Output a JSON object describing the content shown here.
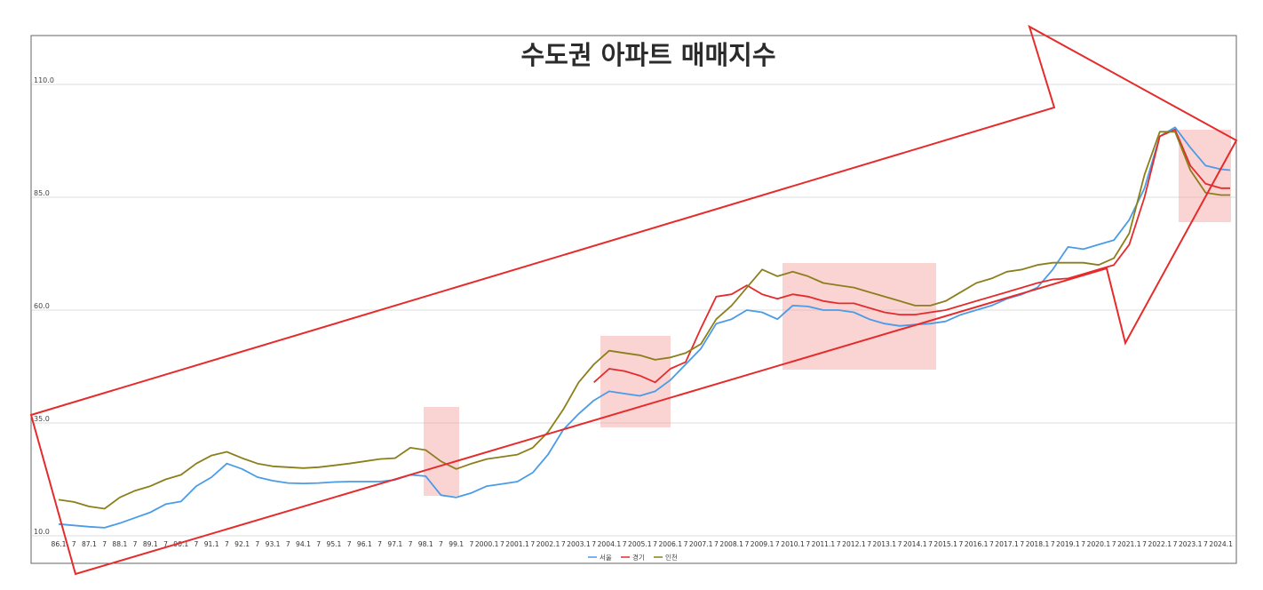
{
  "chart_data": {
    "type": "line",
    "title": "수도권 아파트 매매지수",
    "xlabel": "",
    "ylabel": "",
    "ylim": [
      10,
      110
    ],
    "grid": true,
    "legend": "bottom",
    "yticks": [
      "10.0",
      "35.0",
      "60.0",
      "85.0",
      "110.0"
    ],
    "ytick_values": [
      10,
      35,
      60,
      85,
      110
    ],
    "x_range": [
      1986.0,
      2024.3
    ],
    "x_tick_labels": [
      {
        "label": "86.1",
        "x": 1986.0
      },
      {
        "label": "7",
        "x": 1986.5
      },
      {
        "label": "87.1",
        "x": 1987.0
      },
      {
        "label": "7",
        "x": 1987.5
      },
      {
        "label": "88.1",
        "x": 1988.0
      },
      {
        "label": "7",
        "x": 1988.5
      },
      {
        "label": "89.1",
        "x": 1989.0
      },
      {
        "label": "7",
        "x": 1989.5
      },
      {
        "label": "90.1",
        "x": 1990.0
      },
      {
        "label": "7",
        "x": 1990.5
      },
      {
        "label": "91.1",
        "x": 1991.0
      },
      {
        "label": "7",
        "x": 1991.5
      },
      {
        "label": "92.1",
        "x": 1992.0
      },
      {
        "label": "7",
        "x": 1992.5
      },
      {
        "label": "93.1",
        "x": 1993.0
      },
      {
        "label": "7",
        "x": 1993.5
      },
      {
        "label": "94.1",
        "x": 1994.0
      },
      {
        "label": "7",
        "x": 1994.5
      },
      {
        "label": "95.1",
        "x": 1995.0
      },
      {
        "label": "7",
        "x": 1995.5
      },
      {
        "label": "96.1",
        "x": 1996.0
      },
      {
        "label": "7",
        "x": 1996.5
      },
      {
        "label": "97.1",
        "x": 1997.0
      },
      {
        "label": "7",
        "x": 1997.5
      },
      {
        "label": "98.1",
        "x": 1998.0
      },
      {
        "label": "7",
        "x": 1998.5
      },
      {
        "label": "99.1",
        "x": 1999.0
      },
      {
        "label": "7",
        "x": 1999.5
      },
      {
        "label": "2000.1",
        "x": 2000.0
      },
      {
        "label": "7",
        "x": 2000.5
      },
      {
        "label": "2001.1",
        "x": 2001.0
      },
      {
        "label": "7",
        "x": 2001.5
      },
      {
        "label": "2002.1",
        "x": 2002.0
      },
      {
        "label": "7",
        "x": 2002.5
      },
      {
        "label": "2003.1",
        "x": 2003.0
      },
      {
        "label": "7",
        "x": 2003.5
      },
      {
        "label": "2004.1",
        "x": 2004.0
      },
      {
        "label": "7",
        "x": 2004.5
      },
      {
        "label": "2005.1",
        "x": 2005.0
      },
      {
        "label": "7",
        "x": 2005.5
      },
      {
        "label": "2006.1",
        "x": 2006.0
      },
      {
        "label": "7",
        "x": 2006.5
      },
      {
        "label": "2007.1",
        "x": 2007.0
      },
      {
        "label": "7",
        "x": 2007.5
      },
      {
        "label": "2008.1",
        "x": 2008.0
      },
      {
        "label": "7",
        "x": 2008.5
      },
      {
        "label": "2009.1",
        "x": 2009.0
      },
      {
        "label": "7",
        "x": 2009.5
      },
      {
        "label": "2010.1",
        "x": 2010.0
      },
      {
        "label": "7",
        "x": 2010.5
      },
      {
        "label": "2011.1",
        "x": 2011.0
      },
      {
        "label": "7",
        "x": 2011.5
      },
      {
        "label": "2012.1",
        "x": 2012.0
      },
      {
        "label": "7",
        "x": 2012.5
      },
      {
        "label": "2013.1",
        "x": 2013.0
      },
      {
        "label": "7",
        "x": 2013.5
      },
      {
        "label": "2014.1",
        "x": 2014.0
      },
      {
        "label": "7",
        "x": 2014.5
      },
      {
        "label": "2015.1",
        "x": 2015.0
      },
      {
        "label": "7",
        "x": 2015.5
      },
      {
        "label": "2016.1",
        "x": 2016.0
      },
      {
        "label": "7",
        "x": 2016.5
      },
      {
        "label": "2017.1",
        "x": 2017.0
      },
      {
        "label": "7",
        "x": 2017.5
      },
      {
        "label": "2018.1",
        "x": 2018.0
      },
      {
        "label": "7",
        "x": 2018.5
      },
      {
        "label": "2019.1",
        "x": 2019.0
      },
      {
        "label": "7",
        "x": 2019.5
      },
      {
        "label": "2020.1",
        "x": 2020.0
      },
      {
        "label": "7",
        "x": 2020.5
      },
      {
        "label": "2021.1",
        "x": 2021.0
      },
      {
        "label": "7",
        "x": 2021.5
      },
      {
        "label": "2022.1",
        "x": 2022.0
      },
      {
        "label": "7",
        "x": 2022.5
      },
      {
        "label": "2023.1",
        "x": 2023.0
      },
      {
        "label": "7",
        "x": 2023.5
      },
      {
        "label": "2024.1",
        "x": 2024.0
      }
    ],
    "series": [
      {
        "name": "서울",
        "color": "#4a9be8",
        "points": [
          [
            1986.0,
            12.6
          ],
          [
            1986.5,
            12.3
          ],
          [
            1987.0,
            12.0
          ],
          [
            1987.5,
            11.8
          ],
          [
            1988.0,
            12.8
          ],
          [
            1988.5,
            14.0
          ],
          [
            1989.0,
            15.2
          ],
          [
            1989.5,
            17.0
          ],
          [
            1990.0,
            17.6
          ],
          [
            1990.5,
            21.0
          ],
          [
            1991.0,
            23.0
          ],
          [
            1991.5,
            26.0
          ],
          [
            1992.0,
            24.8
          ],
          [
            1992.5,
            23.0
          ],
          [
            1993.0,
            22.2
          ],
          [
            1993.5,
            21.7
          ],
          [
            1994.0,
            21.6
          ],
          [
            1994.5,
            21.7
          ],
          [
            1995.0,
            21.9
          ],
          [
            1995.5,
            22.0
          ],
          [
            1996.0,
            22.0
          ],
          [
            1996.5,
            22.0
          ],
          [
            1997.0,
            22.4
          ],
          [
            1997.5,
            23.5
          ],
          [
            1998.0,
            23.2
          ],
          [
            1998.5,
            19.0
          ],
          [
            1999.0,
            18.5
          ],
          [
            1999.5,
            19.5
          ],
          [
            2000.0,
            21.0
          ],
          [
            2000.5,
            21.5
          ],
          [
            2001.0,
            22.0
          ],
          [
            2001.5,
            24.0
          ],
          [
            2002.0,
            28.0
          ],
          [
            2002.5,
            33.5
          ],
          [
            2003.0,
            37.0
          ],
          [
            2003.5,
            40.0
          ],
          [
            2004.0,
            42.0
          ],
          [
            2004.5,
            41.5
          ],
          [
            2005.0,
            41.0
          ],
          [
            2005.5,
            42.0
          ],
          [
            2006.0,
            44.5
          ],
          [
            2006.5,
            48.0
          ],
          [
            2007.0,
            51.5
          ],
          [
            2007.5,
            57.0
          ],
          [
            2008.0,
            58.0
          ],
          [
            2008.5,
            60.0
          ],
          [
            2009.0,
            59.5
          ],
          [
            2009.5,
            58.0
          ],
          [
            2010.0,
            61.0
          ],
          [
            2010.5,
            60.8
          ],
          [
            2011.0,
            60.0
          ],
          [
            2011.5,
            60.0
          ],
          [
            2012.0,
            59.5
          ],
          [
            2012.5,
            58.0
          ],
          [
            2013.0,
            57.0
          ],
          [
            2013.5,
            56.5
          ],
          [
            2014.0,
            56.8
          ],
          [
            2014.5,
            57.0
          ],
          [
            2015.0,
            57.5
          ],
          [
            2015.5,
            59.0
          ],
          [
            2016.0,
            60.0
          ],
          [
            2016.5,
            61.0
          ],
          [
            2017.0,
            62.5
          ],
          [
            2017.5,
            63.5
          ],
          [
            2018.0,
            65.0
          ],
          [
            2018.5,
            69.0
          ],
          [
            2019.0,
            74.0
          ],
          [
            2019.5,
            73.5
          ],
          [
            2020.0,
            74.5
          ],
          [
            2020.5,
            75.5
          ],
          [
            2021.0,
            80.0
          ],
          [
            2021.5,
            87.0
          ],
          [
            2022.0,
            98.5
          ],
          [
            2022.5,
            100.5
          ],
          [
            2023.0,
            96.0
          ],
          [
            2023.5,
            92.0
          ],
          [
            2024.0,
            91.2
          ],
          [
            2024.3,
            91.0
          ]
        ]
      },
      {
        "name": "경기",
        "color": "#e52b2b",
        "points": [
          [
            2003.5,
            44.0
          ],
          [
            2004.0,
            47.0
          ],
          [
            2004.5,
            46.5
          ],
          [
            2005.0,
            45.5
          ],
          [
            2005.5,
            44.0
          ],
          [
            2006.0,
            47.0
          ],
          [
            2006.5,
            48.5
          ],
          [
            2007.0,
            56.0
          ],
          [
            2007.5,
            63.0
          ],
          [
            2008.0,
            63.5
          ],
          [
            2008.5,
            65.5
          ],
          [
            2009.0,
            63.5
          ],
          [
            2009.5,
            62.5
          ],
          [
            2010.0,
            63.5
          ],
          [
            2010.5,
            63.0
          ],
          [
            2011.0,
            62.0
          ],
          [
            2011.5,
            61.5
          ],
          [
            2012.0,
            61.5
          ],
          [
            2012.5,
            60.5
          ],
          [
            2013.0,
            59.5
          ],
          [
            2013.5,
            59.0
          ],
          [
            2014.0,
            59.0
          ],
          [
            2014.5,
            59.5
          ],
          [
            2015.0,
            60.0
          ],
          [
            2015.5,
            61.0
          ],
          [
            2016.0,
            62.0
          ],
          [
            2016.5,
            63.0
          ],
          [
            2017.0,
            64.0
          ],
          [
            2017.5,
            65.0
          ],
          [
            2018.0,
            66.0
          ],
          [
            2018.5,
            66.8
          ],
          [
            2019.0,
            67.0
          ],
          [
            2019.5,
            68.0
          ],
          [
            2020.0,
            69.0
          ],
          [
            2020.5,
            70.0
          ],
          [
            2021.0,
            74.5
          ],
          [
            2021.5,
            85.0
          ],
          [
            2022.0,
            98.5
          ],
          [
            2022.5,
            100.0
          ],
          [
            2023.0,
            92.0
          ],
          [
            2023.5,
            88.0
          ],
          [
            2024.0,
            87.0
          ],
          [
            2024.3,
            87.0
          ]
        ]
      },
      {
        "name": "인천",
        "color": "#8b7f1c",
        "points": [
          [
            1986.0,
            18.0
          ],
          [
            1986.5,
            17.5
          ],
          [
            1987.0,
            16.5
          ],
          [
            1987.5,
            16.0
          ],
          [
            1988.0,
            18.5
          ],
          [
            1988.5,
            20.0
          ],
          [
            1989.0,
            21.0
          ],
          [
            1989.5,
            22.5
          ],
          [
            1990.0,
            23.5
          ],
          [
            1990.5,
            26.0
          ],
          [
            1991.0,
            27.8
          ],
          [
            1991.5,
            28.6
          ],
          [
            1992.0,
            27.2
          ],
          [
            1992.5,
            26.0
          ],
          [
            1993.0,
            25.4
          ],
          [
            1993.5,
            25.2
          ],
          [
            1994.0,
            25.0
          ],
          [
            1994.5,
            25.2
          ],
          [
            1995.0,
            25.6
          ],
          [
            1995.5,
            26.0
          ],
          [
            1996.0,
            26.5
          ],
          [
            1996.5,
            27.0
          ],
          [
            1997.0,
            27.2
          ],
          [
            1997.5,
            29.5
          ],
          [
            1998.0,
            29.0
          ],
          [
            1998.5,
            26.5
          ],
          [
            1999.0,
            24.8
          ],
          [
            1999.5,
            26.0
          ],
          [
            2000.0,
            27.0
          ],
          [
            2000.5,
            27.5
          ],
          [
            2001.0,
            28.0
          ],
          [
            2001.5,
            29.5
          ],
          [
            2002.0,
            33.0
          ],
          [
            2002.5,
            38.0
          ],
          [
            2003.0,
            44.0
          ],
          [
            2003.5,
            48.0
          ],
          [
            2004.0,
            51.0
          ],
          [
            2004.5,
            50.5
          ],
          [
            2005.0,
            50.0
          ],
          [
            2005.5,
            49.0
          ],
          [
            2006.0,
            49.5
          ],
          [
            2006.5,
            50.5
          ],
          [
            2007.0,
            52.5
          ],
          [
            2007.5,
            58.0
          ],
          [
            2008.0,
            61.0
          ],
          [
            2008.5,
            65.0
          ],
          [
            2009.0,
            69.0
          ],
          [
            2009.5,
            67.5
          ],
          [
            2010.0,
            68.5
          ],
          [
            2010.5,
            67.5
          ],
          [
            2011.0,
            66.0
          ],
          [
            2011.5,
            65.5
          ],
          [
            2012.0,
            65.0
          ],
          [
            2012.5,
            64.0
          ],
          [
            2013.0,
            63.0
          ],
          [
            2013.5,
            62.0
          ],
          [
            2014.0,
            61.0
          ],
          [
            2014.5,
            61.0
          ],
          [
            2015.0,
            62.0
          ],
          [
            2015.5,
            64.0
          ],
          [
            2016.0,
            66.0
          ],
          [
            2016.5,
            67.0
          ],
          [
            2017.0,
            68.5
          ],
          [
            2017.5,
            69.0
          ],
          [
            2018.0,
            70.0
          ],
          [
            2018.5,
            70.5
          ],
          [
            2019.0,
            70.5
          ],
          [
            2019.5,
            70.5
          ],
          [
            2020.0,
            70.0
          ],
          [
            2020.5,
            71.5
          ],
          [
            2021.0,
            77.0
          ],
          [
            2021.5,
            90.0
          ],
          [
            2022.0,
            99.5
          ],
          [
            2022.5,
            99.5
          ],
          [
            2023.0,
            91.0
          ],
          [
            2023.5,
            86.0
          ],
          [
            2024.0,
            85.5
          ],
          [
            2024.3,
            85.5
          ]
        ]
      }
    ]
  }
}
